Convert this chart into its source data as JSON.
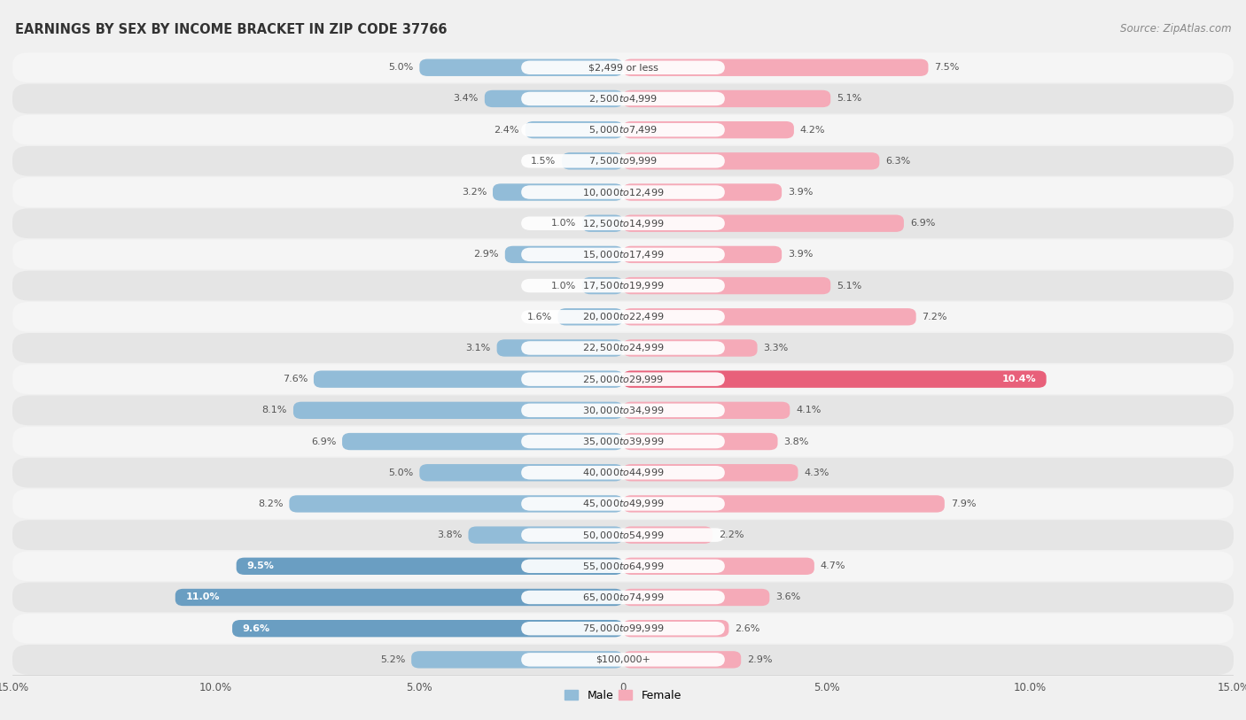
{
  "title": "EARNINGS BY SEX BY INCOME BRACKET IN ZIP CODE 37766",
  "source": "Source: ZipAtlas.com",
  "categories": [
    "$2,499 or less",
    "$2,500 to $4,999",
    "$5,000 to $7,499",
    "$7,500 to $9,999",
    "$10,000 to $12,499",
    "$12,500 to $14,999",
    "$15,000 to $17,499",
    "$17,500 to $19,999",
    "$20,000 to $22,499",
    "$22,500 to $24,999",
    "$25,000 to $29,999",
    "$30,000 to $34,999",
    "$35,000 to $39,999",
    "$40,000 to $44,999",
    "$45,000 to $49,999",
    "$50,000 to $54,999",
    "$55,000 to $64,999",
    "$65,000 to $74,999",
    "$75,000 to $99,999",
    "$100,000+"
  ],
  "male_values": [
    5.0,
    3.4,
    2.4,
    1.5,
    3.2,
    1.0,
    2.9,
    1.0,
    1.6,
    3.1,
    7.6,
    8.1,
    6.9,
    5.0,
    8.2,
    3.8,
    9.5,
    11.0,
    9.6,
    5.2
  ],
  "female_values": [
    7.5,
    5.1,
    4.2,
    6.3,
    3.9,
    6.9,
    3.9,
    5.1,
    7.2,
    3.3,
    10.4,
    4.1,
    3.8,
    4.3,
    7.9,
    2.2,
    4.7,
    3.6,
    2.6,
    2.9
  ],
  "male_color": "#92bcd8",
  "female_color": "#f5aab8",
  "male_highlight_color": "#6a9ec2",
  "female_highlight_color": "#e8607a",
  "highlight_male": [
    16,
    17,
    18
  ],
  "highlight_female": [
    10
  ],
  "background_color": "#f0f0f0",
  "row_light_color": "#f5f5f5",
  "row_dark_color": "#e5e5e5",
  "axis_limit": 15.0,
  "legend_labels": [
    "Male",
    "Female"
  ],
  "title_fontsize": 10.5,
  "source_fontsize": 8.5,
  "label_fontsize": 8.0,
  "cat_fontsize": 8.0
}
